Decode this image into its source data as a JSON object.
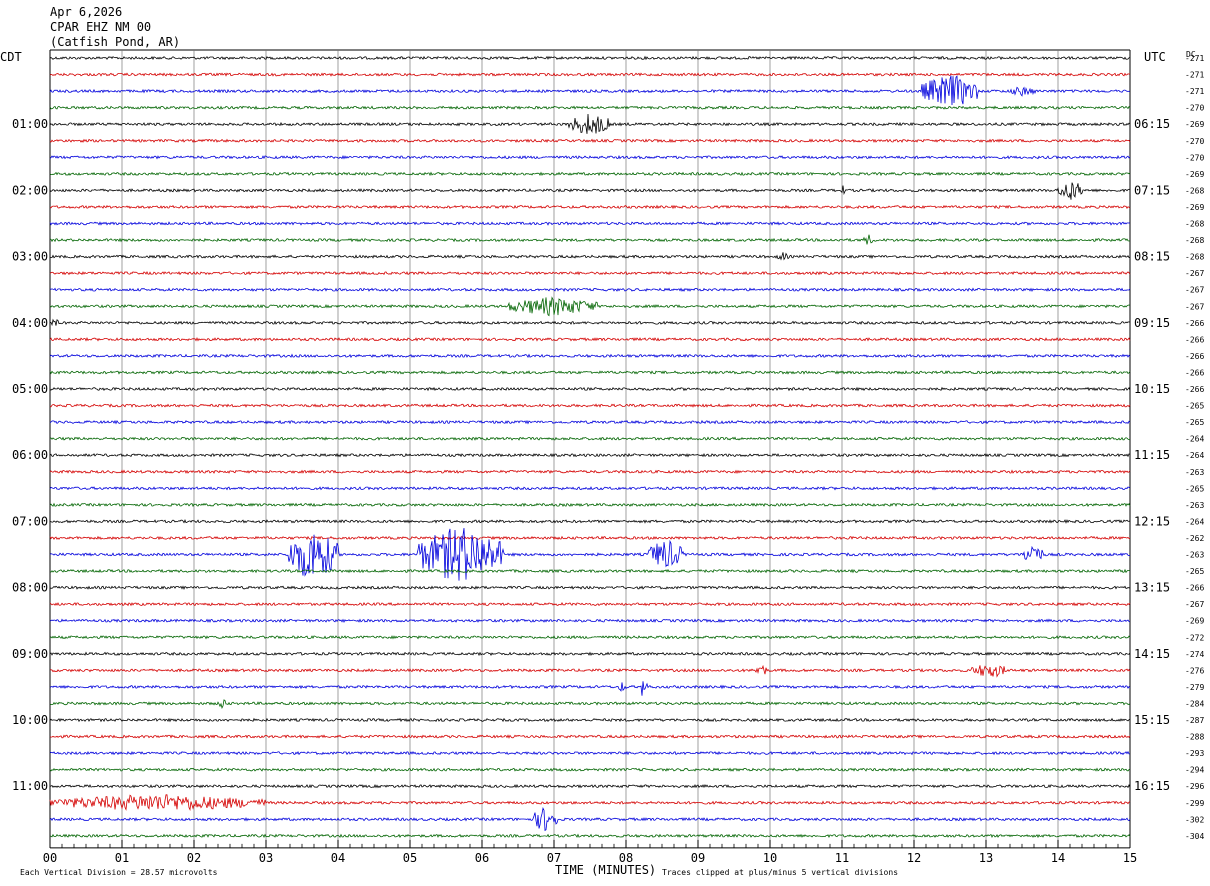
{
  "header": {
    "date": "Apr 6,2026",
    "station": "CPAR EHZ NM 00",
    "location": "(Catfish Pond, AR)"
  },
  "labels": {
    "left_tz": "CDT",
    "right_tz": "UTC",
    "dc": "DC",
    "xlabel": "TIME (MINUTES)",
    "footer_left": "Each Vertical Division =   28.57 microvolts",
    "footer_right": "Traces clipped at plus/minus 5 vertical divisions"
  },
  "colors": {
    "trace_cycle": [
      "#000000",
      "#d40000",
      "#0000dc",
      "#006400"
    ],
    "grid": "#777777",
    "text": "#000000"
  },
  "chart_data": {
    "type": "line",
    "subtype": "helicorder",
    "x_ticks": [
      "00",
      "01",
      "02",
      "03",
      "04",
      "05",
      "06",
      "07",
      "08",
      "09",
      "10",
      "11",
      "12",
      "13",
      "14",
      "15"
    ],
    "xlim": [
      0,
      15
    ],
    "minutes_per_line": 15,
    "line_count": 48,
    "left_hour_labels": [
      "01:00",
      "02:00",
      "03:00",
      "04:00",
      "05:00",
      "06:00",
      "07:00",
      "08:00",
      "09:00",
      "10:00",
      "11:00"
    ],
    "right_hour_labels": [
      "06:15",
      "07:15",
      "08:15",
      "09:15",
      "10:15",
      "11:15",
      "12:15",
      "13:15",
      "14:15",
      "15:15",
      "16:15"
    ],
    "hour_label_every_n_lines": 4,
    "hour_label_first_line": 4,
    "dc_values": [
      "-271",
      "-271",
      "-271",
      "-270",
      "-269",
      "-270",
      "-270",
      "-269",
      "-268",
      "-269",
      "-268",
      "-268",
      "-268",
      "-267",
      "-267",
      "-267",
      "-266",
      "-266",
      "-266",
      "-266",
      "-266",
      "-265",
      "-265",
      "-264",
      "-264",
      "-263",
      "-265",
      "-263",
      "-264",
      "-262",
      "-263",
      "-265",
      "-266",
      "-267",
      "-269",
      "-272",
      "-274",
      "-276",
      "-279",
      "-284",
      "-287",
      "-288",
      "-293",
      "-294",
      "-296",
      "-299",
      "-302",
      "-304"
    ],
    "events": [
      {
        "line": 2,
        "start": 12.1,
        "end": 12.9,
        "amp": 18
      },
      {
        "line": 2,
        "start": 13.3,
        "end": 13.7,
        "amp": 5
      },
      {
        "line": 4,
        "start": 7.2,
        "end": 7.8,
        "amp": 12
      },
      {
        "line": 8,
        "start": 10.95,
        "end": 11.05,
        "amp": 6
      },
      {
        "line": 8,
        "start": 14.0,
        "end": 14.35,
        "amp": 11
      },
      {
        "line": 11,
        "start": 11.3,
        "end": 11.45,
        "amp": 6
      },
      {
        "line": 12,
        "start": 10.1,
        "end": 10.25,
        "amp": 5
      },
      {
        "line": 15,
        "start": 6.35,
        "end": 7.6,
        "amp": 10
      },
      {
        "line": 16,
        "start": 0.0,
        "end": 0.12,
        "amp": 5
      },
      {
        "line": 30,
        "start": 3.3,
        "end": 4.0,
        "amp": 28
      },
      {
        "line": 30,
        "start": 5.1,
        "end": 6.3,
        "amp": 30
      },
      {
        "line": 30,
        "start": 8.3,
        "end": 8.8,
        "amp": 16
      },
      {
        "line": 30,
        "start": 13.5,
        "end": 13.8,
        "amp": 12
      },
      {
        "line": 37,
        "start": 9.8,
        "end": 9.95,
        "amp": 8
      },
      {
        "line": 37,
        "start": 12.8,
        "end": 13.3,
        "amp": 8
      },
      {
        "line": 38,
        "start": 8.2,
        "end": 8.3,
        "amp": 14
      },
      {
        "line": 38,
        "start": 7.9,
        "end": 8.0,
        "amp": 6
      },
      {
        "line": 39,
        "start": 2.35,
        "end": 2.45,
        "amp": 8
      },
      {
        "line": 45,
        "start": 0.0,
        "end": 3.0,
        "amp": 9
      },
      {
        "line": 46,
        "start": 6.7,
        "end": 7.05,
        "amp": 13
      }
    ]
  }
}
